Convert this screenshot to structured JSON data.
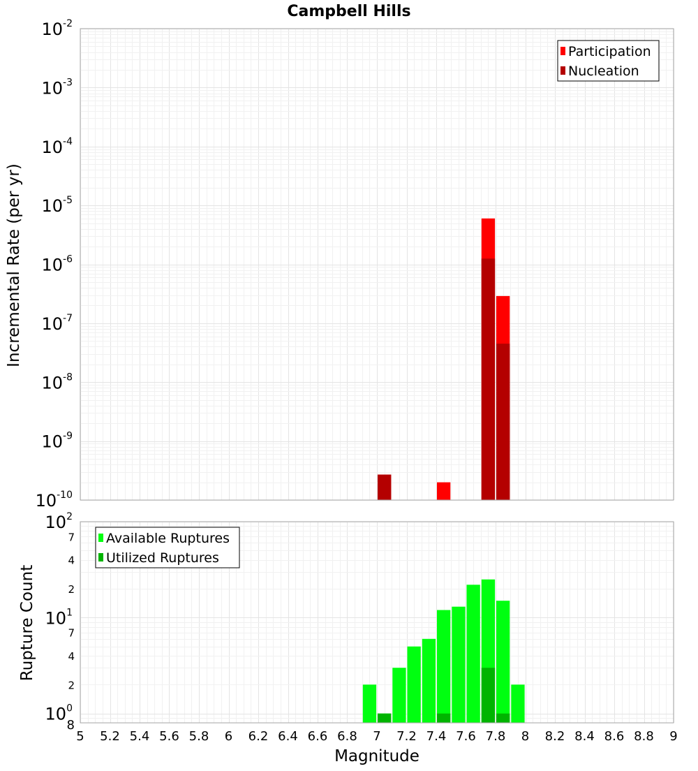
{
  "chart_data": [
    {
      "type": "bar",
      "title": "Campbell Hills",
      "xlabel": "",
      "ylabel": "Incremental Rate (per yr)",
      "x_scale": "linear",
      "y_scale": "log",
      "xlim": [
        5,
        9
      ],
      "ylim": [
        1e-10,
        0.01
      ],
      "grid": true,
      "legend_position": "top-right",
      "y_ticks": [
        {
          "mantissa": "10",
          "exponent": "-10"
        },
        {
          "mantissa": "10",
          "exponent": "-9"
        },
        {
          "mantissa": "10",
          "exponent": "-8"
        },
        {
          "mantissa": "10",
          "exponent": "-7"
        },
        {
          "mantissa": "10",
          "exponent": "-6"
        },
        {
          "mantissa": "10",
          "exponent": "-5"
        },
        {
          "mantissa": "10",
          "exponent": "-4"
        },
        {
          "mantissa": "10",
          "exponent": "-3"
        },
        {
          "mantissa": "10",
          "exponent": "-2"
        }
      ],
      "series": [
        {
          "name": "Participation",
          "color": "#ff0000",
          "points": [
            {
              "x": 7.05,
              "y": 2.7e-10
            },
            {
              "x": 7.45,
              "y": 2e-10
            },
            {
              "x": 7.75,
              "y": 6e-06
            },
            {
              "x": 7.85,
              "y": 2.9e-07
            }
          ]
        },
        {
          "name": "Nucleation",
          "color": "#b40000",
          "points": [
            {
              "x": 7.05,
              "y": 2.7e-10
            },
            {
              "x": 7.75,
              "y": 1.25e-06
            },
            {
              "x": 7.85,
              "y": 4.5e-08
            }
          ]
        }
      ]
    },
    {
      "type": "bar",
      "title": "",
      "xlabel": "Magnitude",
      "ylabel": "Rupture Count",
      "x_scale": "linear",
      "y_scale": "log",
      "xlim": [
        5,
        9
      ],
      "ylim": [
        0.8,
        100
      ],
      "grid": true,
      "legend_position": "top-left",
      "x_ticks": [
        "5",
        "5.2",
        "5.4",
        "5.6",
        "5.8",
        "6",
        "6.2",
        "6.4",
        "6.6",
        "6.8",
        "7",
        "7.2",
        "7.4",
        "7.6",
        "7.8",
        "8",
        "8.2",
        "8.4",
        "8.6",
        "8.8",
        "9"
      ],
      "y_ticks": [
        {
          "mantissa": "10",
          "exponent": "0"
        },
        {
          "mantissa": "10",
          "exponent": "1"
        },
        {
          "mantissa": "10",
          "exponent": "2"
        }
      ],
      "y_minor_labels": [
        "8",
        "2",
        "4",
        "7",
        "2",
        "4",
        "7"
      ],
      "series": [
        {
          "name": "Available Ruptures",
          "color": "#00ff10",
          "points": [
            {
              "x": 6.95,
              "y": 2
            },
            {
              "x": 7.05,
              "y": 1
            },
            {
              "x": 7.15,
              "y": 3
            },
            {
              "x": 7.25,
              "y": 5
            },
            {
              "x": 7.35,
              "y": 6
            },
            {
              "x": 7.45,
              "y": 12
            },
            {
              "x": 7.55,
              "y": 13
            },
            {
              "x": 7.65,
              "y": 22
            },
            {
              "x": 7.75,
              "y": 25
            },
            {
              "x": 7.85,
              "y": 15
            },
            {
              "x": 7.95,
              "y": 2
            }
          ]
        },
        {
          "name": "Utilized Ruptures",
          "color": "#00b400",
          "points": [
            {
              "x": 7.05,
              "y": 1
            },
            {
              "x": 7.45,
              "y": 1
            },
            {
              "x": 7.75,
              "y": 3
            },
            {
              "x": 7.85,
              "y": 1
            }
          ]
        }
      ]
    }
  ]
}
